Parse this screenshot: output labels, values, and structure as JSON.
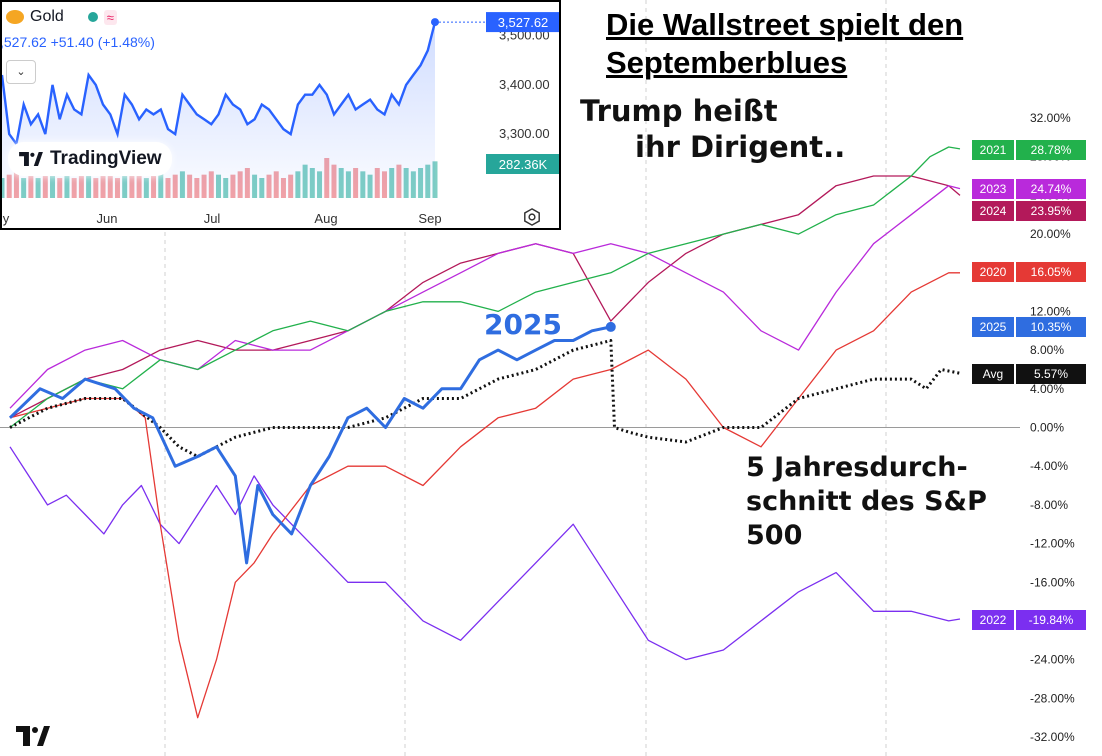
{
  "title_lines": [
    "Die Wallstreet spielt den",
    "Septemberblues"
  ],
  "annotation_trump": [
    "Trump heißt",
    "ihr Dirigent.."
  ],
  "annotation_avg": [
    "5 Jahresdurch-",
    "schnitt des S&P",
    "500"
  ],
  "annotation_2025": "2025",
  "colors": {
    "2021": "#22b14c",
    "2023": "#b92adb",
    "2024": "#b3195a",
    "2020": "#e53935",
    "2025": "#2f6de0",
    "avg": "#111111",
    "2022": "#7b2ff0"
  },
  "chart_data": [
    {
      "type": "line",
      "title": "",
      "ylabel": "",
      "y_axis_ticks": [
        "32.00%",
        "28.00%",
        "24.00%",
        "20.00%",
        "16.00%",
        "12.00%",
        "8.00%",
        "4.00%",
        "0.00%",
        "-4.00%",
        "-8.00%",
        "-12.00%",
        "-16.00%",
        "-20.00%",
        "-24.00%",
        "-28.00%",
        "-32.00%"
      ],
      "ylim": [
        -32,
        32
      ],
      "x_index": [
        0,
        253
      ],
      "grid": "vertical dashed only",
      "legend": "right edge labels",
      "series": [
        {
          "name": "2021",
          "color": "#22b14c",
          "last_label": "28.78%",
          "values": [
            [
              0,
              0
            ],
            [
              10,
              3
            ],
            [
              20,
              5
            ],
            [
              30,
              4
            ],
            [
              40,
              7
            ],
            [
              50,
              6
            ],
            [
              60,
              8
            ],
            [
              70,
              10
            ],
            [
              80,
              11
            ],
            [
              90,
              10
            ],
            [
              100,
              12
            ],
            [
              110,
              13
            ],
            [
              120,
              13
            ],
            [
              130,
              12
            ],
            [
              140,
              14
            ],
            [
              150,
              15
            ],
            [
              160,
              16
            ],
            [
              170,
              18
            ],
            [
              180,
              19
            ],
            [
              190,
              20
            ],
            [
              200,
              21
            ],
            [
              210,
              20
            ],
            [
              220,
              22
            ],
            [
              230,
              23
            ],
            [
              240,
              26
            ],
            [
              245,
              28
            ],
            [
              250,
              29
            ],
            [
              253,
              28.8
            ]
          ]
        },
        {
          "name": "2023",
          "color": "#b92adb",
          "last_label": "24.74%",
          "values": [
            [
              0,
              2
            ],
            [
              10,
              6
            ],
            [
              20,
              8
            ],
            [
              30,
              9
            ],
            [
              40,
              7
            ],
            [
              50,
              6
            ],
            [
              60,
              9
            ],
            [
              70,
              8
            ],
            [
              80,
              8
            ],
            [
              90,
              10
            ],
            [
              100,
              12
            ],
            [
              110,
              14
            ],
            [
              120,
              16
            ],
            [
              130,
              18
            ],
            [
              140,
              19
            ],
            [
              150,
              18
            ],
            [
              160,
              19
            ],
            [
              170,
              18
            ],
            [
              180,
              16
            ],
            [
              190,
              14
            ],
            [
              200,
              10
            ],
            [
              210,
              8
            ],
            [
              220,
              14
            ],
            [
              230,
              19
            ],
            [
              240,
              22
            ],
            [
              250,
              25
            ],
            [
              253,
              24.7
            ]
          ]
        },
        {
          "name": "2024",
          "color": "#b3195a",
          "last_label": "23.95%",
          "values": [
            [
              0,
              1
            ],
            [
              10,
              3
            ],
            [
              20,
              5
            ],
            [
              30,
              6
            ],
            [
              40,
              8
            ],
            [
              50,
              9
            ],
            [
              60,
              8
            ],
            [
              70,
              8
            ],
            [
              80,
              9
            ],
            [
              90,
              10
            ],
            [
              100,
              12
            ],
            [
              110,
              15
            ],
            [
              120,
              17
            ],
            [
              130,
              18
            ],
            [
              140,
              19
            ],
            [
              150,
              18
            ],
            [
              160,
              11
            ],
            [
              170,
              15
            ],
            [
              180,
              18
            ],
            [
              190,
              20
            ],
            [
              200,
              21
            ],
            [
              210,
              22
            ],
            [
              220,
              25
            ],
            [
              230,
              26
            ],
            [
              240,
              26
            ],
            [
              250,
              25
            ],
            [
              253,
              24
            ]
          ]
        },
        {
          "name": "2020",
          "color": "#e53935",
          "last_label": "16.05%",
          "values": [
            [
              0,
              1
            ],
            [
              10,
              2
            ],
            [
              20,
              3
            ],
            [
              30,
              3
            ],
            [
              36,
              1
            ],
            [
              40,
              -10
            ],
            [
              45,
              -22
            ],
            [
              50,
              -30
            ],
            [
              55,
              -24
            ],
            [
              60,
              -16
            ],
            [
              65,
              -14
            ],
            [
              70,
              -11
            ],
            [
              80,
              -6
            ],
            [
              90,
              -4
            ],
            [
              100,
              -4
            ],
            [
              110,
              -6
            ],
            [
              120,
              -2
            ],
            [
              130,
              1
            ],
            [
              140,
              2
            ],
            [
              150,
              5
            ],
            [
              160,
              6
            ],
            [
              170,
              8
            ],
            [
              180,
              5
            ],
            [
              190,
              0
            ],
            [
              200,
              -2
            ],
            [
              210,
              3
            ],
            [
              220,
              8
            ],
            [
              230,
              10
            ],
            [
              240,
              14
            ],
            [
              250,
              16
            ],
            [
              253,
              16
            ]
          ]
        },
        {
          "name": "2025",
          "color": "#2f6de0",
          "last_label": "10.35%",
          "values": [
            [
              0,
              1
            ],
            [
              8,
              4
            ],
            [
              14,
              3
            ],
            [
              20,
              5
            ],
            [
              28,
              4
            ],
            [
              33,
              2
            ],
            [
              38,
              1
            ],
            [
              44,
              -4
            ],
            [
              50,
              -3
            ],
            [
              55,
              -2
            ],
            [
              60,
              -5
            ],
            [
              63,
              -14
            ],
            [
              66,
              -6
            ],
            [
              70,
              -9
            ],
            [
              75,
              -11
            ],
            [
              80,
              -6
            ],
            [
              85,
              -3
            ],
            [
              90,
              1
            ],
            [
              95,
              2
            ],
            [
              100,
              0
            ],
            [
              105,
              3
            ],
            [
              110,
              2
            ],
            [
              115,
              4
            ],
            [
              120,
              4
            ],
            [
              125,
              7
            ],
            [
              130,
              8
            ],
            [
              135,
              7
            ],
            [
              140,
              8
            ],
            [
              145,
              9
            ],
            [
              150,
              9
            ],
            [
              155,
              10
            ],
            [
              160,
              10.4
            ]
          ]
        },
        {
          "name": "Avg",
          "color": "#111111",
          "last_label": "5.57%",
          "values": [
            [
              0,
              0
            ],
            [
              10,
              2
            ],
            [
              20,
              3
            ],
            [
              30,
              3
            ],
            [
              40,
              0
            ],
            [
              45,
              -2
            ],
            [
              50,
              -3
            ],
            [
              60,
              -1
            ],
            [
              70,
              0
            ],
            [
              80,
              0
            ],
            [
              90,
              0
            ],
            [
              100,
              1
            ],
            [
              110,
              3
            ],
            [
              120,
              3
            ],
            [
              130,
              5
            ],
            [
              140,
              6
            ],
            [
              150,
              8
            ],
            [
              160,
              9
            ],
            [
              161,
              0
            ],
            [
              165,
              -0.5
            ],
            [
              170,
              -1
            ],
            [
              180,
              -1.5
            ],
            [
              190,
              0
            ],
            [
              200,
              0
            ],
            [
              210,
              3
            ],
            [
              220,
              4
            ],
            [
              230,
              5
            ],
            [
              240,
              5
            ],
            [
              244,
              4
            ],
            [
              248,
              6
            ],
            [
              253,
              5.6
            ]
          ]
        },
        {
          "name": "2022",
          "color": "#7b2ff0",
          "last_label": "-19.84%",
          "values": [
            [
              0,
              -2
            ],
            [
              5,
              -5
            ],
            [
              10,
              -8
            ],
            [
              15,
              -7
            ],
            [
              20,
              -9
            ],
            [
              25,
              -11
            ],
            [
              30,
              -8
            ],
            [
              35,
              -6
            ],
            [
              40,
              -10
            ],
            [
              45,
              -12
            ],
            [
              50,
              -9
            ],
            [
              55,
              -6
            ],
            [
              60,
              -9
            ],
            [
              65,
              -5
            ],
            [
              70,
              -8
            ],
            [
              80,
              -12
            ],
            [
              90,
              -16
            ],
            [
              100,
              -16
            ],
            [
              110,
              -20
            ],
            [
              120,
              -22
            ],
            [
              130,
              -18
            ],
            [
              140,
              -14
            ],
            [
              150,
              -10
            ],
            [
              160,
              -16
            ],
            [
              170,
              -22
            ],
            [
              180,
              -24
            ],
            [
              190,
              -23
            ],
            [
              200,
              -20
            ],
            [
              210,
              -17
            ],
            [
              220,
              -15
            ],
            [
              230,
              -19
            ],
            [
              240,
              -19
            ],
            [
              250,
              -20
            ],
            [
              253,
              -19.8
            ]
          ]
        }
      ]
    },
    {
      "type": "line",
      "title": "Gold",
      "last_price": "3,527.62",
      "quote": ",527.62 +51.40 (+1.48%)",
      "volume_label": "282.36K",
      "x_tick_labels": [
        "y",
        "Jun",
        "Jul",
        "Aug",
        "Sep"
      ],
      "y_tick_labels": [
        "3,500.00",
        "3,400.00",
        "3,300.00"
      ],
      "ylim": [
        3170,
        3540
      ],
      "values": [
        3420,
        3300,
        3280,
        3360,
        3320,
        3340,
        3300,
        3400,
        3330,
        3380,
        3350,
        3340,
        3420,
        3400,
        3360,
        3340,
        3300,
        3380,
        3360,
        3330,
        3350,
        3340,
        3350,
        3310,
        3300,
        3380,
        3360,
        3340,
        3330,
        3320,
        3340,
        3380,
        3360,
        3350,
        3320,
        3330,
        3360,
        3350,
        3330,
        3310,
        3300,
        3360,
        3380,
        3380,
        3400,
        3380,
        3340,
        3360,
        3380,
        3350,
        3360,
        3370,
        3350,
        3340,
        3380,
        3360,
        3400,
        3420,
        3440,
        3470,
        3527.62
      ],
      "volume_values": [
        6,
        7,
        8,
        6,
        7,
        6,
        7,
        8,
        6,
        7,
        6,
        8,
        7,
        6,
        7,
        8,
        6,
        7,
        9,
        7,
        6,
        7,
        8,
        6,
        7,
        8,
        7,
        6,
        7,
        8,
        7,
        6,
        7,
        8,
        9,
        7,
        6,
        7,
        8,
        6,
        7,
        8,
        10,
        9,
        8,
        12,
        10,
        9,
        8,
        9,
        8,
        7,
        9,
        8,
        9,
        10,
        9,
        8,
        9,
        10,
        11
      ]
    }
  ],
  "inset": {
    "coin_icon": "gold-coin-icon",
    "brand": "TradingView"
  }
}
